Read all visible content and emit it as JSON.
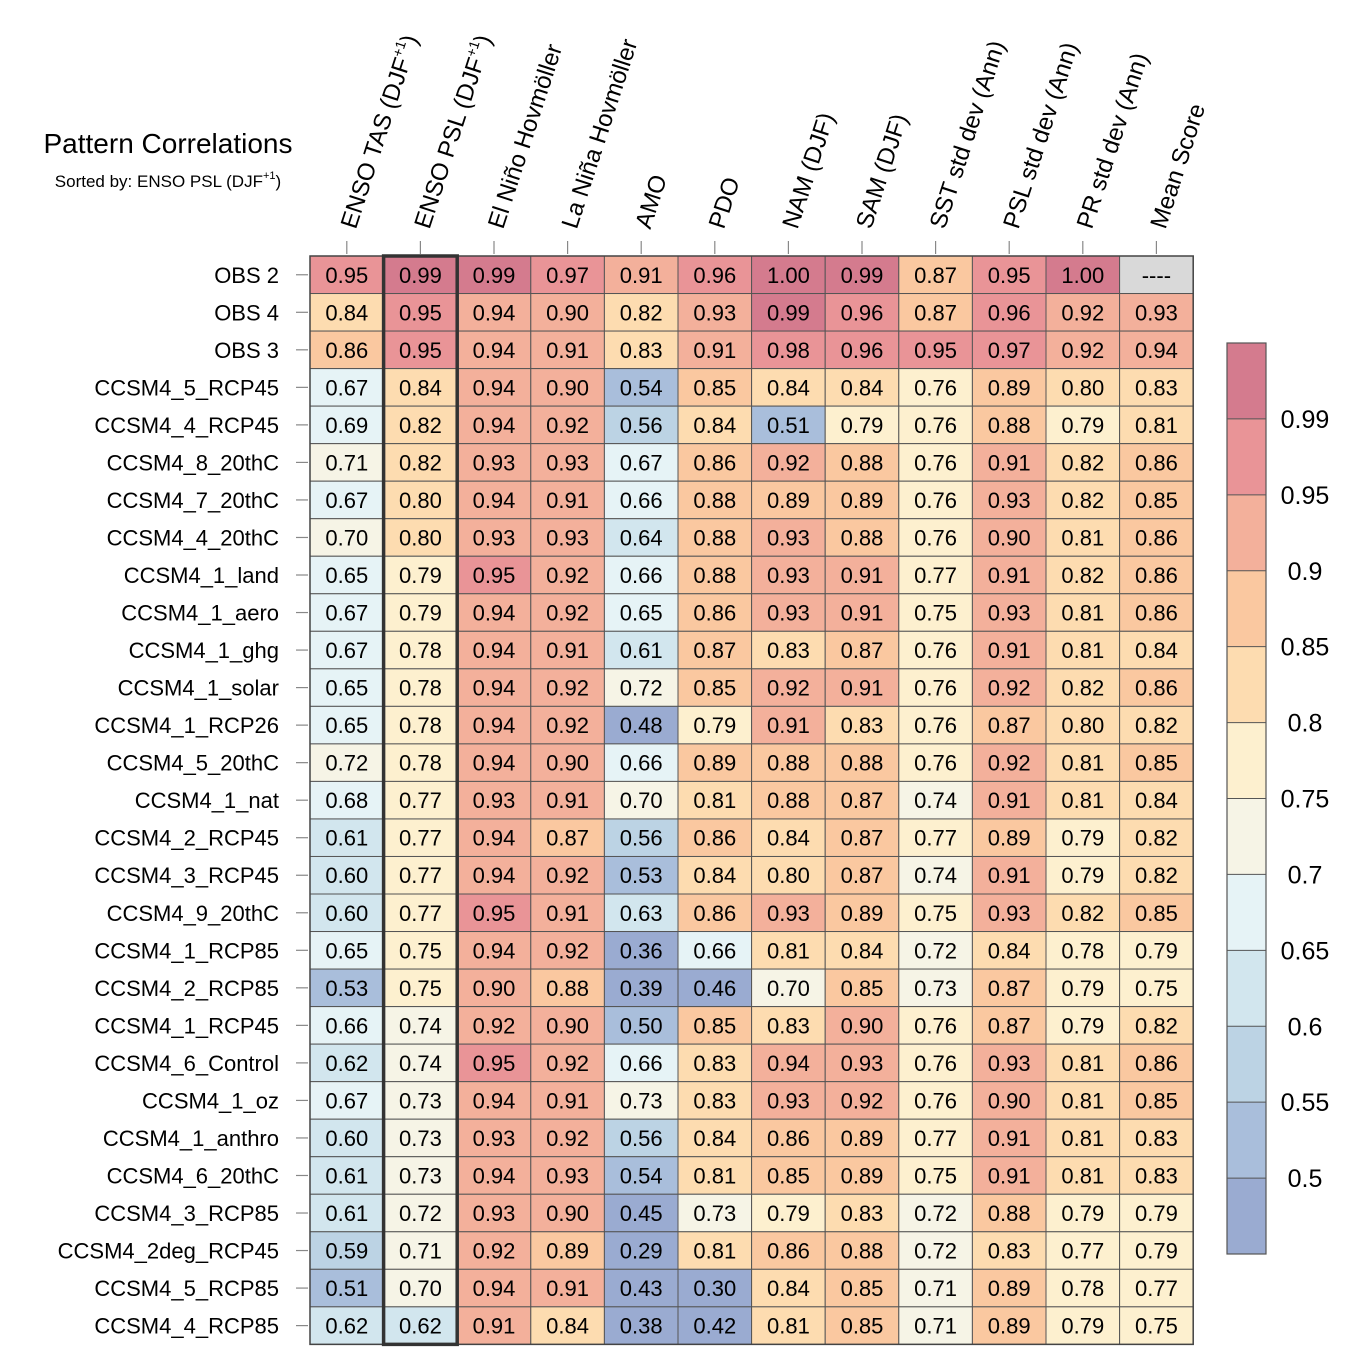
{
  "chart_data": {
    "type": "heatmap",
    "title": "Pattern Correlations",
    "subtitle": {
      "text": "Sorted by: ENSO PSL (DJF",
      "sup": "+1",
      "close": ")"
    },
    "columns": [
      {
        "label": "ENSO TAS (DJF",
        "sup": "+1",
        "close": ")"
      },
      {
        "label": "ENSO PSL (DJF",
        "sup": "+1",
        "close": ")"
      },
      {
        "label": "El Niño Hovmöller"
      },
      {
        "label": "La Niña Hovmöller"
      },
      {
        "label": "AMO"
      },
      {
        "label": "PDO"
      },
      {
        "label": "NAM (DJF)"
      },
      {
        "label": "SAM (DJF)"
      },
      {
        "label": "SST std dev (Ann)"
      },
      {
        "label": "PSL std dev (Ann)"
      },
      {
        "label": "PR std dev (Ann)"
      },
      {
        "label": "Mean Score"
      }
    ],
    "highlighted_column": 1,
    "rows": [
      "OBS 2",
      "OBS 4",
      "OBS 3",
      "CCSM4_5_RCP45",
      "CCSM4_4_RCP45",
      "CCSM4_8_20thC",
      "CCSM4_7_20thC",
      "CCSM4_4_20thC",
      "CCSM4_1_land",
      "CCSM4_1_aero",
      "CCSM4_1_ghg",
      "CCSM4_1_solar",
      "CCSM4_1_RCP26",
      "CCSM4_5_20thC",
      "CCSM4_1_nat",
      "CCSM4_2_RCP45",
      "CCSM4_3_RCP45",
      "CCSM4_9_20thC",
      "CCSM4_1_RCP85",
      "CCSM4_2_RCP85",
      "CCSM4_1_RCP45",
      "CCSM4_6_Control",
      "CCSM4_1_oz",
      "CCSM4_1_anthro",
      "CCSM4_6_20thC",
      "CCSM4_3_RCP85",
      "CCSM4_2deg_RCP45",
      "CCSM4_5_RCP85",
      "CCSM4_4_RCP85"
    ],
    "values": [
      [
        "0.95",
        "0.99",
        "0.99",
        "0.97",
        "0.91",
        "0.96",
        "1.00",
        "0.99",
        "0.87",
        "0.95",
        "1.00",
        "----"
      ],
      [
        "0.84",
        "0.95",
        "0.94",
        "0.90",
        "0.82",
        "0.93",
        "0.99",
        "0.96",
        "0.87",
        "0.96",
        "0.92",
        "0.93"
      ],
      [
        "0.86",
        "0.95",
        "0.94",
        "0.91",
        "0.83",
        "0.91",
        "0.98",
        "0.96",
        "0.95",
        "0.97",
        "0.92",
        "0.94"
      ],
      [
        "0.67",
        "0.84",
        "0.94",
        "0.90",
        "0.54",
        "0.85",
        "0.84",
        "0.84",
        "0.76",
        "0.89",
        "0.80",
        "0.83"
      ],
      [
        "0.69",
        "0.82",
        "0.94",
        "0.92",
        "0.56",
        "0.84",
        "0.51",
        "0.79",
        "0.76",
        "0.88",
        "0.79",
        "0.81"
      ],
      [
        "0.71",
        "0.82",
        "0.93",
        "0.93",
        "0.67",
        "0.86",
        "0.92",
        "0.88",
        "0.76",
        "0.91",
        "0.82",
        "0.86"
      ],
      [
        "0.67",
        "0.80",
        "0.94",
        "0.91",
        "0.66",
        "0.88",
        "0.89",
        "0.89",
        "0.76",
        "0.93",
        "0.82",
        "0.85"
      ],
      [
        "0.70",
        "0.80",
        "0.93",
        "0.93",
        "0.64",
        "0.88",
        "0.93",
        "0.88",
        "0.76",
        "0.90",
        "0.81",
        "0.86"
      ],
      [
        "0.65",
        "0.79",
        "0.95",
        "0.92",
        "0.66",
        "0.88",
        "0.93",
        "0.91",
        "0.77",
        "0.91",
        "0.82",
        "0.86"
      ],
      [
        "0.67",
        "0.79",
        "0.94",
        "0.92",
        "0.65",
        "0.86",
        "0.93",
        "0.91",
        "0.75",
        "0.93",
        "0.81",
        "0.86"
      ],
      [
        "0.67",
        "0.78",
        "0.94",
        "0.91",
        "0.61",
        "0.87",
        "0.83",
        "0.87",
        "0.76",
        "0.91",
        "0.81",
        "0.84"
      ],
      [
        "0.65",
        "0.78",
        "0.94",
        "0.92",
        "0.72",
        "0.85",
        "0.92",
        "0.91",
        "0.76",
        "0.92",
        "0.82",
        "0.86"
      ],
      [
        "0.65",
        "0.78",
        "0.94",
        "0.92",
        "0.48",
        "0.79",
        "0.91",
        "0.83",
        "0.76",
        "0.87",
        "0.80",
        "0.82"
      ],
      [
        "0.72",
        "0.78",
        "0.94",
        "0.90",
        "0.66",
        "0.89",
        "0.88",
        "0.88",
        "0.76",
        "0.92",
        "0.81",
        "0.85"
      ],
      [
        "0.68",
        "0.77",
        "0.93",
        "0.91",
        "0.70",
        "0.81",
        "0.88",
        "0.87",
        "0.74",
        "0.91",
        "0.81",
        "0.84"
      ],
      [
        "0.61",
        "0.77",
        "0.94",
        "0.87",
        "0.56",
        "0.86",
        "0.84",
        "0.87",
        "0.77",
        "0.89",
        "0.79",
        "0.82"
      ],
      [
        "0.60",
        "0.77",
        "0.94",
        "0.92",
        "0.53",
        "0.84",
        "0.80",
        "0.87",
        "0.74",
        "0.91",
        "0.79",
        "0.82"
      ],
      [
        "0.60",
        "0.77",
        "0.95",
        "0.91",
        "0.63",
        "0.86",
        "0.93",
        "0.89",
        "0.75",
        "0.93",
        "0.82",
        "0.85"
      ],
      [
        "0.65",
        "0.75",
        "0.94",
        "0.92",
        "0.36",
        "0.66",
        "0.81",
        "0.84",
        "0.72",
        "0.84",
        "0.78",
        "0.79"
      ],
      [
        "0.53",
        "0.75",
        "0.90",
        "0.88",
        "0.39",
        "0.46",
        "0.70",
        "0.85",
        "0.73",
        "0.87",
        "0.79",
        "0.75"
      ],
      [
        "0.66",
        "0.74",
        "0.92",
        "0.90",
        "0.50",
        "0.85",
        "0.83",
        "0.90",
        "0.76",
        "0.87",
        "0.79",
        "0.82"
      ],
      [
        "0.62",
        "0.74",
        "0.95",
        "0.92",
        "0.66",
        "0.83",
        "0.94",
        "0.93",
        "0.76",
        "0.93",
        "0.81",
        "0.86"
      ],
      [
        "0.67",
        "0.73",
        "0.94",
        "0.91",
        "0.73",
        "0.83",
        "0.93",
        "0.92",
        "0.76",
        "0.90",
        "0.81",
        "0.85"
      ],
      [
        "0.60",
        "0.73",
        "0.93",
        "0.92",
        "0.56",
        "0.84",
        "0.86",
        "0.89",
        "0.77",
        "0.91",
        "0.81",
        "0.83"
      ],
      [
        "0.61",
        "0.73",
        "0.94",
        "0.93",
        "0.54",
        "0.81",
        "0.85",
        "0.89",
        "0.75",
        "0.91",
        "0.81",
        "0.83"
      ],
      [
        "0.61",
        "0.72",
        "0.93",
        "0.90",
        "0.45",
        "0.73",
        "0.79",
        "0.83",
        "0.72",
        "0.88",
        "0.79",
        "0.79"
      ],
      [
        "0.59",
        "0.71",
        "0.92",
        "0.89",
        "0.29",
        "0.81",
        "0.86",
        "0.88",
        "0.72",
        "0.83",
        "0.77",
        "0.79"
      ],
      [
        "0.51",
        "0.70",
        "0.94",
        "0.91",
        "0.43",
        "0.30",
        "0.84",
        "0.85",
        "0.71",
        "0.89",
        "0.78",
        "0.77"
      ],
      [
        "0.62",
        "0.62",
        "0.91",
        "0.84",
        "0.38",
        "0.42",
        "0.81",
        "0.85",
        "0.71",
        "0.89",
        "0.79",
        "0.75"
      ]
    ],
    "missing_value_color": "#d9d9d9",
    "colorbar": {
      "levels": [
        "0.5",
        "0.55",
        "0.6",
        "0.65",
        "0.7",
        "0.75",
        "0.8",
        "0.85",
        "0.9",
        "0.95",
        "0.99"
      ],
      "colors": [
        "#9aabd1",
        "#a9bedb",
        "#bcd3e4",
        "#d2e6ee",
        "#e6f3f6",
        "#f6f4e6",
        "#fdf0cf",
        "#fddcb0",
        "#fac8a0",
        "#f3b09b",
        "#e99497",
        "#d47b8e"
      ]
    }
  }
}
